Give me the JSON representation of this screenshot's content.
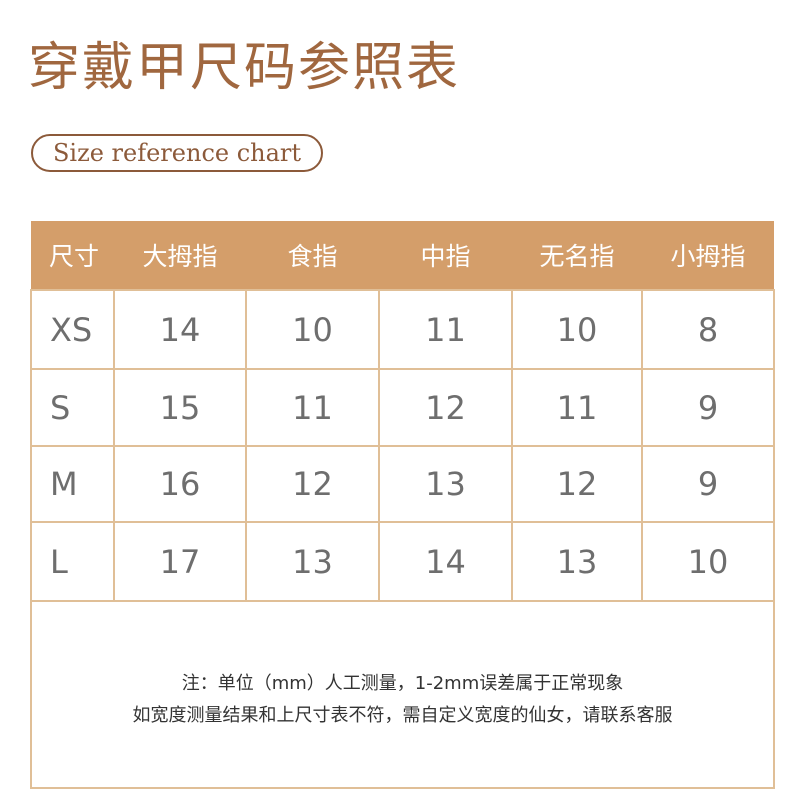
{
  "title": "穿戴甲尺码参照表",
  "subtitle": "Size reference chart",
  "colors": {
    "accent": "#d49e6a",
    "title": "#a0673f",
    "border": "#e0bf97"
  },
  "table": {
    "headers": [
      "尺寸",
      "大拇指",
      "食指",
      "中指",
      "无名指",
      "小拇指"
    ],
    "rows": [
      [
        "XS",
        "14",
        "10",
        "11",
        "10",
        "8"
      ],
      [
        "S",
        "15",
        "11",
        "12",
        "11",
        "9"
      ],
      [
        "M",
        "16",
        "12",
        "13",
        "12",
        "9"
      ],
      [
        "L",
        "17",
        "13",
        "14",
        "13",
        "10"
      ]
    ]
  },
  "notes": [
    "注：单位（mm）人工测量，1-2mm误差属于正常现象",
    "如宽度测量结果和上尺寸表不符，需自定义宽度的仙女，请联系客服"
  ]
}
